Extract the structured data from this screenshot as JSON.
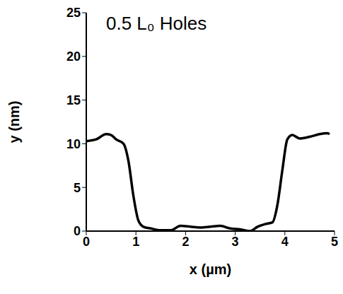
{
  "chart_data": {
    "type": "line",
    "title": "0.5 L₀ Holes",
    "x_label": "x (µm)",
    "y_label": "y (nm)",
    "x": [
      0,
      0.2,
      0.4,
      0.5,
      0.6,
      0.75,
      0.85,
      0.95,
      1.05,
      1.15,
      1.3,
      1.5,
      1.7,
      1.9,
      2.1,
      2.3,
      2.5,
      2.7,
      2.9,
      3.1,
      3.3,
      3.45,
      3.6,
      3.75,
      3.85,
      3.95,
      4.05,
      4.15,
      4.3,
      4.5,
      4.7,
      4.85,
      4.9
    ],
    "values": [
      10.3,
      10.5,
      11.1,
      11,
      10.5,
      10,
      8,
      4,
      1.2,
      0.5,
      0.3,
      0.1,
      0.1,
      0.6,
      0.5,
      0.4,
      0.5,
      0.6,
      0.3,
      0.2,
      0,
      0.5,
      0.8,
      1,
      3,
      7,
      10.5,
      11,
      10.6,
      10.8,
      11.1,
      11.2,
      11.1
    ],
    "xlim": [
      0,
      5
    ],
    "ylim": [
      0,
      25
    ],
    "xticks": [
      0,
      1,
      2,
      3,
      4,
      5
    ],
    "yticks": [
      0,
      5,
      10,
      15,
      20,
      25
    ],
    "color": "#000000",
    "grid": false
  }
}
